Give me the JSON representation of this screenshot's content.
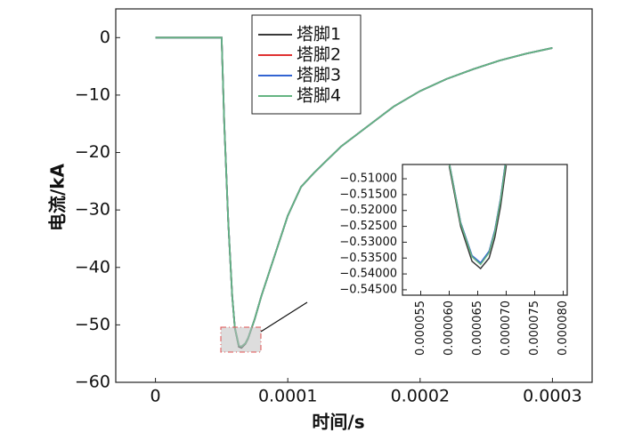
{
  "chart_data": [
    {
      "type": "line",
      "x_label": "时间/s",
      "y_label": "电流/kA",
      "x": [
        0,
        5e-05,
        5.2e-05,
        5.5e-05,
        5.8e-05,
        6e-05,
        6.3e-05,
        6.5e-05,
        6.8e-05,
        7e-05,
        7.5e-05,
        8e-05,
        9e-05,
        0.0001,
        0.00011,
        0.00012,
        0.00014,
        0.00016,
        0.00018,
        0.0002,
        0.00022,
        0.00024,
        0.00026,
        0.00028,
        0.0003
      ],
      "series": [
        {
          "name": "塔脚1",
          "color": "#3a3a3a",
          "values": [
            0,
            0,
            -15,
            -32,
            -45,
            -50.6,
            -53.8,
            -54.0,
            -53.3,
            -52.4,
            -49,
            -45,
            -38,
            -31,
            -26,
            -23.5,
            -19,
            -15.5,
            -12,
            -9.3,
            -7.2,
            -5.5,
            -4,
            -2.8,
            -1.8
          ]
        },
        {
          "name": "塔脚2",
          "color": "#e03232",
          "values": [
            0,
            0,
            -15,
            -32,
            -45,
            -50.5,
            -53.6,
            -53.8,
            -53.2,
            -52.3,
            -49,
            -45,
            -38,
            -31,
            -26,
            -23.5,
            -19,
            -15.5,
            -12,
            -9.3,
            -7.2,
            -5.5,
            -4,
            -2.8,
            -1.8
          ]
        },
        {
          "name": "塔脚3",
          "color": "#3264d2",
          "values": [
            0,
            0,
            -15,
            -32,
            -45,
            -50.5,
            -53.6,
            -53.8,
            -53.2,
            -52.3,
            -49,
            -45,
            -38,
            -31,
            -26,
            -23.5,
            -19,
            -15.5,
            -12,
            -9.3,
            -7.2,
            -5.5,
            -4,
            -2.8,
            -1.8
          ]
        },
        {
          "name": "塔脚4",
          "color": "#64b482",
          "values": [
            0,
            0,
            -15,
            -32,
            -45,
            -50.5,
            -53.6,
            -53.8,
            -53.2,
            -52.3,
            -49,
            -45,
            -38,
            -31,
            -26,
            -23.5,
            -19,
            -15.5,
            -12,
            -9.3,
            -7.2,
            -5.5,
            -4,
            -2.8,
            -1.8
          ]
        }
      ],
      "xlim": [
        -3e-05,
        0.00033
      ],
      "ylim": [
        -60,
        5
      ],
      "xticks": [
        0,
        0.0001,
        0.0002,
        0.0003
      ],
      "yticks": [
        0,
        {
          "value": -10,
          "label": "−10"
        },
        {
          "value": -20,
          "label": "−20"
        },
        {
          "value": -30,
          "label": "−30"
        },
        {
          "value": -40,
          "label": "−40"
        },
        {
          "value": -50,
          "label": "−50"
        },
        {
          "value": -60,
          "label": "−60"
        }
      ],
      "legend": "upper center"
    },
    {
      "type": "line",
      "x": [
        6e-05,
        6.2e-05,
        6.4e-05,
        6.55e-05,
        6.7e-05,
        6.8e-05,
        6.9e-05,
        7e-05
      ],
      "series": [
        {
          "color": "#3a3a3a",
          "values": [
            -0.506,
            -0.525,
            -0.536,
            -0.5383,
            -0.535,
            -0.5285,
            -0.5188,
            -0.5058
          ]
        },
        {
          "color": "#e03232",
          "values": [
            -0.5049,
            -0.5238,
            -0.5344,
            -0.5367,
            -0.533,
            -0.5264,
            -0.5165,
            -0.5033
          ]
        },
        {
          "color": "#3264d2",
          "values": [
            -0.5048,
            -0.5237,
            -0.5342,
            -0.5365,
            -0.5328,
            -0.5262,
            -0.5163,
            -0.503
          ]
        },
        {
          "color": "#64b482",
          "values": [
            -0.505,
            -0.524,
            -0.5346,
            -0.537,
            -0.5333,
            -0.5267,
            -0.5168,
            -0.5036
          ]
        }
      ],
      "xlim": [
        5.18e-05,
        8.07e-05
      ],
      "ylim": [
        -0.5467,
        -0.5055
      ],
      "xticks": [
        5.5e-05,
        {
          "value": 6e-05,
          "label": "0.000060"
        },
        6.5e-05,
        {
          "value": 7e-05,
          "label": "0.000070"
        },
        7.5e-05,
        {
          "value": 8e-05,
          "label": "0.000080"
        }
      ],
      "yticks": [
        {
          "value": -0.51,
          "label": "−0.51000"
        },
        {
          "value": -0.515,
          "label": "−0.51500"
        },
        {
          "value": -0.52,
          "label": "−0.52000"
        },
        {
          "value": -0.525,
          "label": "−0.52500"
        },
        {
          "value": -0.53,
          "label": "−0.53000"
        },
        {
          "value": -0.535,
          "label": "−0.53500"
        },
        {
          "value": -0.54,
          "label": "−0.54000"
        },
        {
          "value": -0.545,
          "label": "−0.54500"
        }
      ]
    }
  ]
}
